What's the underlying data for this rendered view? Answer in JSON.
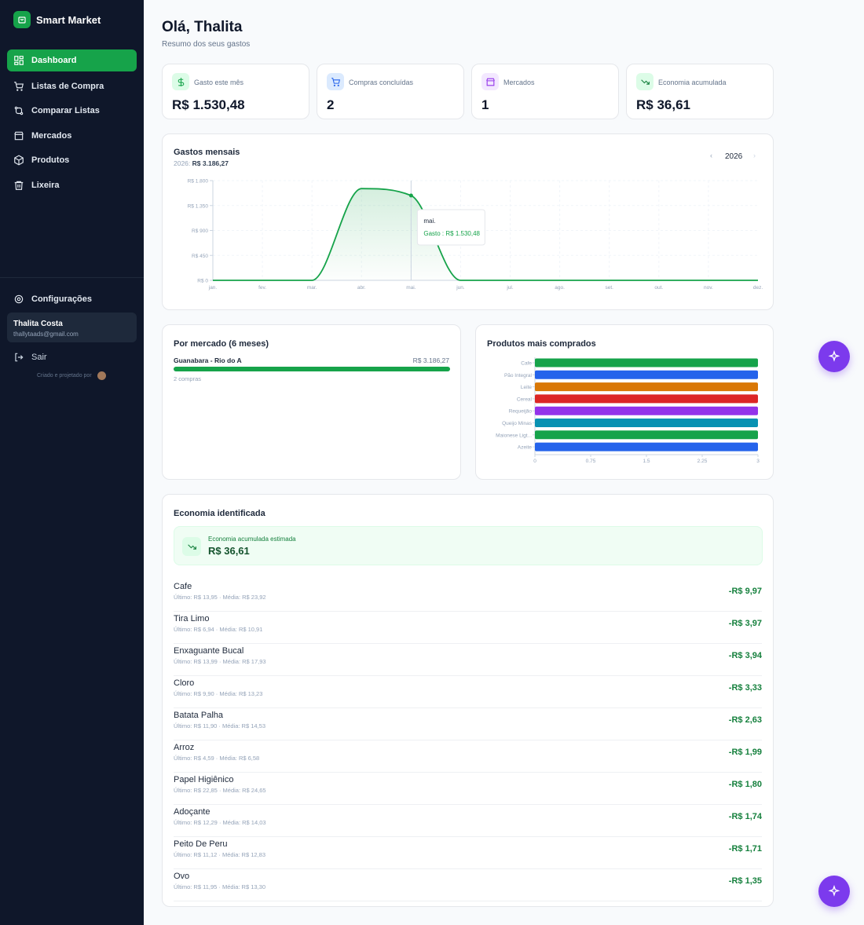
{
  "sidebar": {
    "brand": "Smart Market",
    "nav": [
      "Dashboard",
      "Listas de Compra",
      "Comparar Listas",
      "Mercados",
      "Produtos",
      "Lixeira"
    ],
    "settings": "Configurações",
    "user_name": "Thalita Costa",
    "user_email": "thallytaads@gmail.com",
    "logout": "Sair",
    "credit": "Criado e projetado por"
  },
  "header": {
    "title": "Olá, Thalita",
    "subtitle": "Resumo dos seus gastos"
  },
  "stats": [
    {
      "label": "Gasto este mês",
      "value": "R$ 1.530,48"
    },
    {
      "label": "Compras concluídas",
      "value": "2"
    },
    {
      "label": "Mercados",
      "value": "1"
    },
    {
      "label": "Economia acumulada",
      "value": "R$ 36,61"
    }
  ],
  "monthly_chart": {
    "type": "line",
    "title": "Gastos mensais",
    "total_prefix": "2026:",
    "total": "R$ 3.186,27",
    "year": "2026",
    "categories": [
      "jan.",
      "fev.",
      "mar.",
      "abr.",
      "mai.",
      "jun.",
      "jul.",
      "ago.",
      "set.",
      "out.",
      "nov.",
      "dez."
    ],
    "values": [
      0,
      0,
      0,
      1655.79,
      1530.48,
      0,
      0,
      0,
      0,
      0,
      0,
      0
    ],
    "color": "#16a34a",
    "ylim": [
      0,
      1800
    ],
    "yticks": [
      {
        "value": 0,
        "label": "R$ 0"
      },
      {
        "value": 450,
        "label": "R$ 450"
      },
      {
        "value": 900,
        "label": "R$ 900"
      },
      {
        "value": 1350,
        "label": "R$ 1.350"
      },
      {
        "value": 1800,
        "label": "R$ 1.800"
      }
    ],
    "grid": true,
    "tooltip": {
      "index": 4,
      "title": "mai.",
      "text": "Gasto : R$ 1.530,48"
    }
  },
  "by_market": {
    "title": "Por mercado (6 meses)",
    "markets": [
      {
        "name": "Guanabara - Rio do A",
        "value": 3186.27,
        "value_label": "R$ 3.186,27",
        "purchases": "2 compras"
      }
    ],
    "color": "#16a34a"
  },
  "top_products": {
    "type": "hbar",
    "title": "Produtos mais comprados",
    "categories": [
      "Cafe",
      "Pão Integral",
      "Leite",
      "Cereal",
      "Requeijão",
      "Queijo Minas",
      "Maionese Ligt...",
      "Azeite"
    ],
    "values": [
      3,
      3,
      3,
      3,
      3,
      3,
      3,
      3
    ],
    "colors": [
      "#16a34a",
      "#2563eb",
      "#d97706",
      "#dc2626",
      "#9333ea",
      "#0891b2",
      "#16a34a",
      "#2563eb"
    ],
    "xlim": [
      0,
      3
    ],
    "xticks": [
      0,
      0.75,
      1.5,
      2.25,
      3
    ]
  },
  "savings": {
    "title": "Economia identificada",
    "summary_label": "Economia acumulada estimada",
    "summary_value": "R$ 36,61",
    "items": [
      {
        "name": "Cafe",
        "detail": "Último: R$ 13,95 · Média: R$ 23,92",
        "saving": "-R$ 9,97"
      },
      {
        "name": "Tira Limo",
        "detail": "Último: R$ 6,94 · Média: R$ 10,91",
        "saving": "-R$ 3,97"
      },
      {
        "name": "Enxaguante Bucal",
        "detail": "Último: R$ 13,99 · Média: R$ 17,93",
        "saving": "-R$ 3,94"
      },
      {
        "name": "Cloro",
        "detail": "Último: R$ 9,90 · Média: R$ 13,23",
        "saving": "-R$ 3,33"
      },
      {
        "name": "Batata Palha",
        "detail": "Último: R$ 11,90 · Média: R$ 14,53",
        "saving": "-R$ 2,63"
      },
      {
        "name": "Arroz",
        "detail": "Último: R$ 4,59 · Média: R$ 6,58",
        "saving": "-R$ 1,99"
      },
      {
        "name": "Papel Higiênico",
        "detail": "Último: R$ 22,85 · Média: R$ 24,65",
        "saving": "-R$ 1,80"
      },
      {
        "name": "Adoçante",
        "detail": "Último: R$ 12,29 · Média: R$ 14,03",
        "saving": "-R$ 1,74"
      },
      {
        "name": "Peito De Peru",
        "detail": "Último: R$ 11,12 · Média: R$ 12,83",
        "saving": "-R$ 1,71"
      },
      {
        "name": "Ovo",
        "detail": "Último: R$ 11,95 · Média: R$ 13,30",
        "saving": "-R$ 1,35"
      }
    ]
  }
}
